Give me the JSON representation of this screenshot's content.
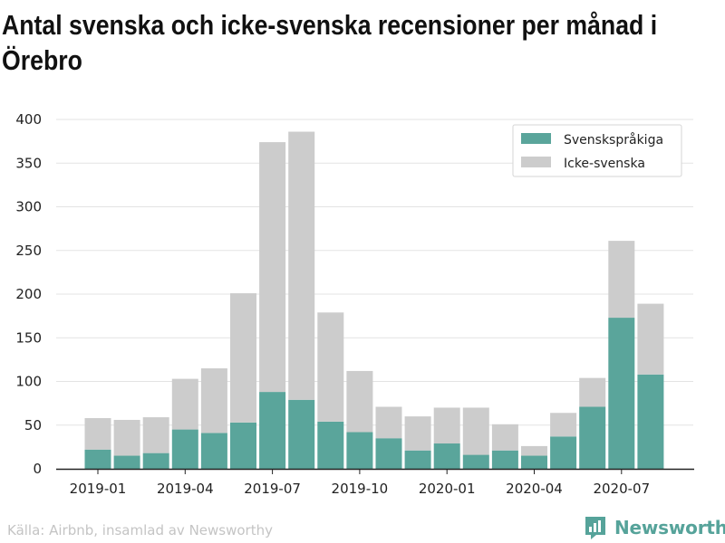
{
  "title": "Antal svenska och icke-svenska recensioner per månad i Örebro",
  "source": "Källa: Airbnb, insamlad av Newsworthy",
  "brand": {
    "name": "Newsworthy"
  },
  "colors": {
    "swedish": "#5aa59b",
    "other": "#cccccc",
    "grid": "#e3e3e3",
    "axis": "#222222"
  },
  "chart_data": {
    "type": "bar",
    "stacked": true,
    "categories": [
      "2019-01",
      "2019-02",
      "2019-03",
      "2019-04",
      "2019-05",
      "2019-06",
      "2019-07",
      "2019-08",
      "2019-09",
      "2019-10",
      "2019-11",
      "2019-12",
      "2020-01",
      "2020-02",
      "2020-03",
      "2020-04",
      "2020-05",
      "2020-06",
      "2020-07",
      "2020-08"
    ],
    "tick_labels": [
      "2019-01",
      "2019-04",
      "2019-07",
      "2019-10",
      "2020-01",
      "2020-04",
      "2020-07"
    ],
    "tick_label_positions": [
      0,
      3,
      6,
      9,
      12,
      15,
      18
    ],
    "ylim": [
      0,
      400
    ],
    "yticks": [
      0,
      50,
      100,
      150,
      200,
      250,
      300,
      350,
      400
    ],
    "grid": true,
    "legend_position": "top-right",
    "series": [
      {
        "name": "Svenskspråkiga",
        "values": [
          22,
          15,
          18,
          45,
          41,
          53,
          88,
          79,
          54,
          42,
          35,
          21,
          29,
          16,
          21,
          15,
          37,
          71,
          173,
          108
        ]
      },
      {
        "name": "Icke-svenska",
        "values": [
          36,
          41,
          41,
          58,
          74,
          148,
          286,
          307,
          125,
          70,
          36,
          39,
          41,
          54,
          30,
          11,
          27,
          33,
          88,
          81
        ]
      }
    ]
  }
}
